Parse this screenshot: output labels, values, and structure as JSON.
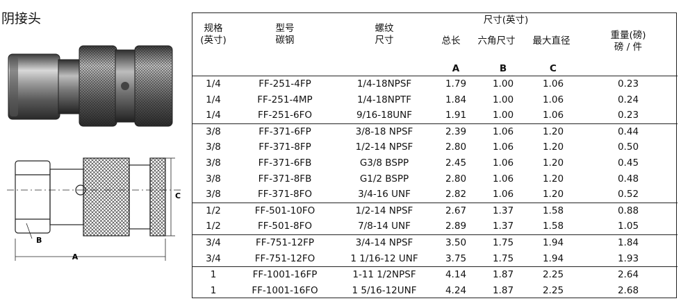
{
  "title": "阴接头",
  "drawing_labels": {
    "a": "A",
    "b": "B",
    "c": "C"
  },
  "table": {
    "headers": {
      "spec": [
        "规格",
        "(英寸)"
      ],
      "model": [
        "型号",
        "碳钢"
      ],
      "thread": [
        "螺纹",
        "尺寸"
      ],
      "dimensions_group": "尺寸(英寸)",
      "length": "总长",
      "hex": "六角尺寸",
      "max_dia": "最大直径",
      "weight": [
        "重量(磅)",
        "磅 / 件"
      ]
    },
    "letters": {
      "length": "A",
      "hex": "B",
      "max_dia": "C"
    },
    "groups": [
      {
        "rows": [
          {
            "size": "1/4",
            "model": "FF-251-4FP",
            "thread": "1/4-18NPSF",
            "a": "1.79",
            "b": "1.00",
            "c": "1.06",
            "weight": "0.23"
          },
          {
            "size": "1/4",
            "model": "FF-251-4MP",
            "thread": "1/4-18NPTF",
            "a": "1.84",
            "b": "1.00",
            "c": "1.06",
            "weight": "0.24"
          },
          {
            "size": "1/4",
            "model": "FF-251-6FO",
            "thread": "9/16-18UNF",
            "a": "1.91",
            "b": "1.00",
            "c": "1.06",
            "weight": "0.23"
          }
        ]
      },
      {
        "rows": [
          {
            "size": "3/8",
            "model": "FF-371-6FP",
            "thread": "3/8-18 NPSF",
            "a": "2.39",
            "b": "1.06",
            "c": "1.20",
            "weight": "0.44"
          },
          {
            "size": "3/8",
            "model": "FF-371-8FP",
            "thread": "1/2-14 NPSF",
            "a": "2.80",
            "b": "1.06",
            "c": "1.20",
            "weight": "0.50"
          },
          {
            "size": "3/8",
            "model": "FF-371-6FB",
            "thread": "G3/8 BSPP",
            "a": "2.45",
            "b": "1.06",
            "c": "1.20",
            "weight": "0.45"
          },
          {
            "size": "3/8",
            "model": "FF-371-8FB",
            "thread": "G1/2 BSPP",
            "a": "2.80",
            "b": "1.06",
            "c": "1.20",
            "weight": "0.48"
          },
          {
            "size": "3/8",
            "model": "FF-371-8FO",
            "thread": "3/4-16 UNF",
            "a": "2.82",
            "b": "1.06",
            "c": "1.20",
            "weight": "0.52"
          }
        ]
      },
      {
        "rows": [
          {
            "size": "1/2",
            "model": "FF-501-10FO",
            "thread": "1/2-14 NPSF",
            "a": "2.67",
            "b": "1.37",
            "c": "1.58",
            "weight": "0.88"
          },
          {
            "size": "1/2",
            "model": "FF-501-8FO",
            "thread": "7/8-14 UNF",
            "a": "2.89",
            "b": "1.37",
            "c": "1.58",
            "weight": "1.05"
          }
        ]
      },
      {
        "rows": [
          {
            "size": "3/4",
            "model": "FF-751-12FP",
            "thread": "3/4-14 NPSF",
            "a": "3.50",
            "b": "1.75",
            "c": "1.94",
            "weight": "1.84"
          },
          {
            "size": "3/4",
            "model": "FF-751-12FO",
            "thread": "1 1/16-12 UNF",
            "a": "3.75",
            "b": "1.75",
            "c": "1.94",
            "weight": "1.93"
          }
        ]
      },
      {
        "rows": [
          {
            "size": "1",
            "model": "FF-1001-16FP",
            "thread": "1-11 1/2NPSF",
            "a": "4.14",
            "b": "1.87",
            "c": "2.25",
            "weight": "2.64"
          },
          {
            "size": "1",
            "model": "FF-1001-16FO",
            "thread": "1 5/16-12UNF",
            "a": "4.24",
            "b": "1.87",
            "c": "2.25",
            "weight": "2.68"
          }
        ]
      }
    ]
  }
}
